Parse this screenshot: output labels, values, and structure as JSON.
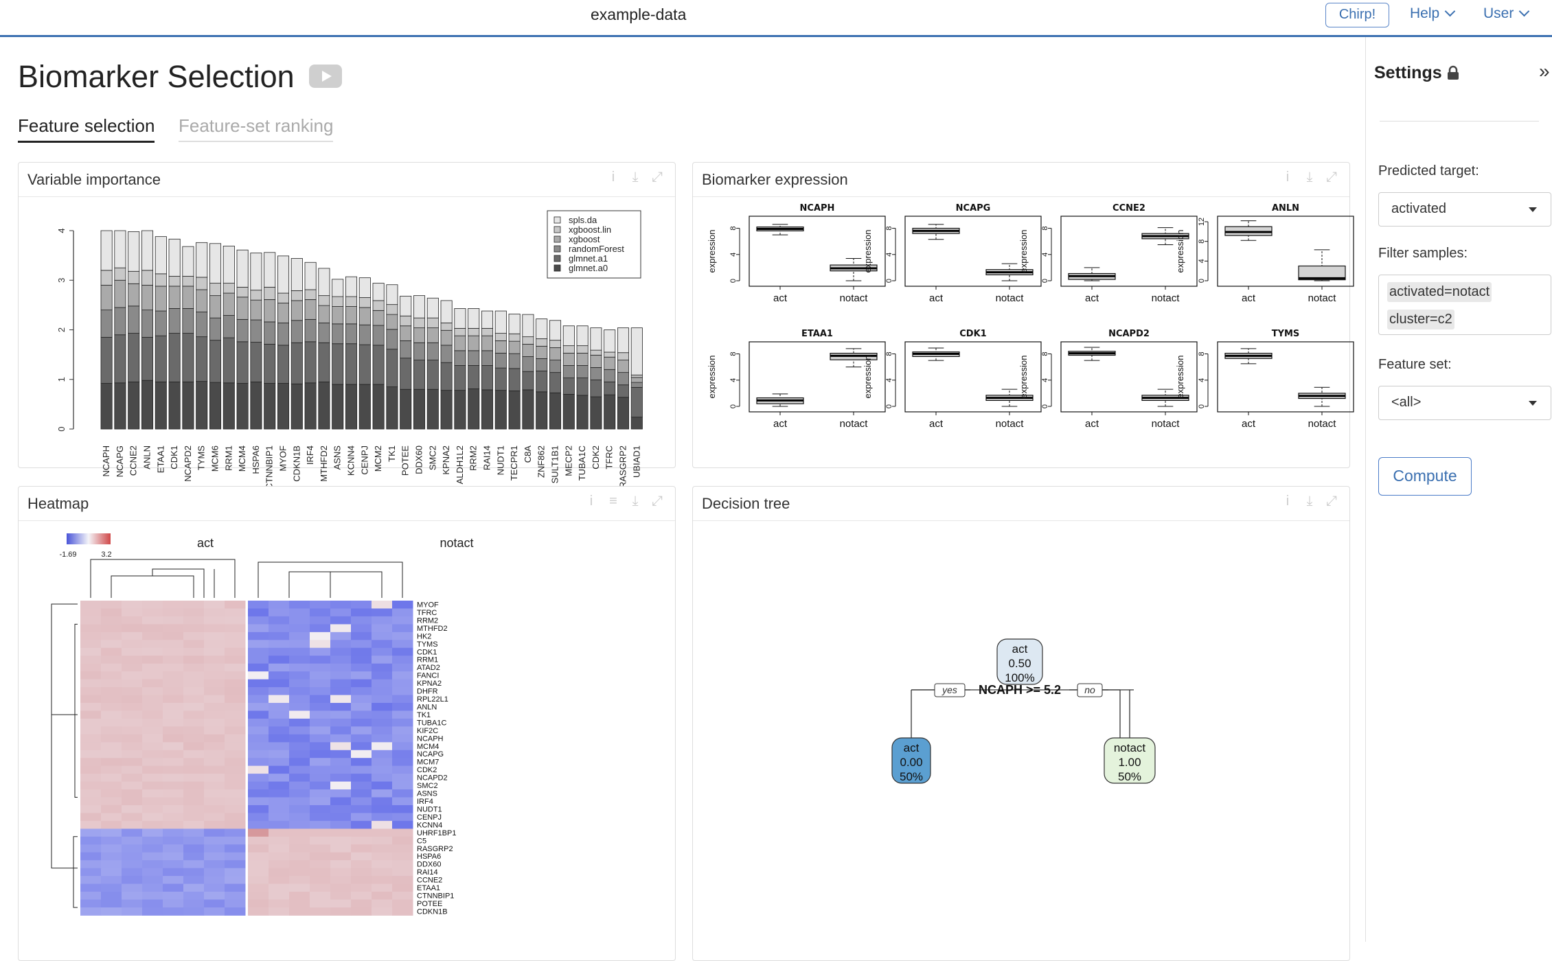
{
  "topbar": {
    "dataset": "example-data",
    "chirp": "Chirp!",
    "help": "Help",
    "user": "User"
  },
  "page": {
    "title": "Biomarker Selection",
    "tabs": [
      "Feature selection",
      "Feature-set ranking"
    ]
  },
  "panels": {
    "varimp": {
      "title": "Variable importance"
    },
    "expr": {
      "title": "Biomarker expression"
    },
    "heatmap": {
      "title": "Heatmap"
    },
    "tree": {
      "title": "Decision tree"
    }
  },
  "sidebar": {
    "title": "Settings",
    "predicted_label": "Predicted target:",
    "predicted_value": "activated",
    "filter_label": "Filter samples:",
    "filters": [
      "activated=notact",
      "cluster=c2"
    ],
    "featureset_label": "Feature set:",
    "featureset_value": "<all>",
    "compute": "Compute"
  },
  "chart_data": [
    {
      "type": "bar",
      "title": "Variable importance",
      "stacked": true,
      "ylim": [
        0,
        4
      ],
      "yticks": [
        0,
        1,
        2,
        3,
        4
      ],
      "categories": [
        "NCAPH",
        "NCAPG",
        "CCNE2",
        "ANLN",
        "ETAA1",
        "CDK1",
        "NCAPD2",
        "TYMS",
        "MCM6",
        "RRM1",
        "MCM4",
        "HSPA6",
        "CTNNBIP1",
        "MYOF",
        "CDKN1B",
        "IRF4",
        "MTHFD2",
        "ASNS",
        "KCNN4",
        "CENPJ",
        "MCM2",
        "TK1",
        "POTEE",
        "DDX60",
        "SMC2",
        "KPNA2",
        "ALDH1L2",
        "RRM2",
        "RAI14",
        "NUDT1",
        "TECPR1",
        "C8A",
        "ZNF862",
        "SULT1B1",
        "MECP2",
        "TUBA1C",
        "CDK2",
        "TFRC",
        "RASGRP2",
        "UBIAD1"
      ],
      "totals": [
        4.0,
        4.0,
        3.98,
        4.0,
        3.88,
        3.83,
        3.68,
        3.76,
        3.74,
        3.69,
        3.61,
        3.55,
        3.56,
        3.49,
        3.44,
        3.36,
        3.24,
        3.02,
        3.07,
        3.05,
        2.94,
        2.91,
        2.68,
        2.69,
        2.64,
        2.59,
        2.43,
        2.43,
        2.38,
        2.38,
        2.32,
        2.31,
        2.22,
        2.19,
        2.08,
        2.08,
        2.04,
        2.0,
        2.04,
        2.04
      ],
      "series": [
        {
          "name": "spls.da",
          "values": [
            0.8,
            0.75,
            0.8,
            0.8,
            0.75,
            0.75,
            0.6,
            0.7,
            0.8,
            0.75,
            0.75,
            0.75,
            0.7,
            0.75,
            0.65,
            0.55,
            0.55,
            0.35,
            0.4,
            0.4,
            0.35,
            0.4,
            0.4,
            0.45,
            0.4,
            0.45,
            0.4,
            0.4,
            0.35,
            0.45,
            0.4,
            0.45,
            0.4,
            0.4,
            0.4,
            0.4,
            0.45,
            0.45,
            0.5,
            0.95
          ]
        },
        {
          "name": "xgboost.lin",
          "values": [
            0.3,
            0.25,
            0.25,
            0.3,
            0.25,
            0.2,
            0.2,
            0.25,
            0.25,
            0.2,
            0.2,
            0.2,
            0.25,
            0.2,
            0.2,
            0.2,
            0.2,
            0.2,
            0.2,
            0.2,
            0.2,
            0.2,
            0.2,
            0.2,
            0.2,
            0.15,
            0.15,
            0.15,
            0.15,
            0.15,
            0.15,
            0.15,
            0.15,
            0.15,
            0.15,
            0.15,
            0.1,
            0.1,
            0.15,
            0.05
          ]
        },
        {
          "name": "xgboost",
          "values": [
            0.5,
            0.55,
            0.45,
            0.5,
            0.5,
            0.45,
            0.45,
            0.45,
            0.45,
            0.45,
            0.45,
            0.4,
            0.45,
            0.4,
            0.4,
            0.4,
            0.35,
            0.35,
            0.35,
            0.35,
            0.3,
            0.3,
            0.3,
            0.3,
            0.3,
            0.3,
            0.3,
            0.3,
            0.3,
            0.25,
            0.25,
            0.25,
            0.25,
            0.25,
            0.25,
            0.25,
            0.25,
            0.25,
            0.25,
            0.1
          ]
        },
        {
          "name": "randomForest",
          "values": [
            0.55,
            0.55,
            0.55,
            0.55,
            0.5,
            0.5,
            0.5,
            0.5,
            0.45,
            0.45,
            0.45,
            0.45,
            0.45,
            0.45,
            0.45,
            0.45,
            0.4,
            0.4,
            0.4,
            0.4,
            0.4,
            0.4,
            0.35,
            0.35,
            0.35,
            0.35,
            0.3,
            0.3,
            0.3,
            0.3,
            0.3,
            0.3,
            0.25,
            0.25,
            0.25,
            0.25,
            0.25,
            0.25,
            0.25,
            0.1
          ]
        },
        {
          "name": "glmnet.a1",
          "values": [
            0.93,
            0.97,
            0.98,
            0.87,
            0.93,
            0.98,
            0.98,
            0.9,
            0.85,
            0.91,
            0.84,
            0.8,
            0.79,
            0.77,
            0.83,
            0.83,
            0.79,
            0.82,
            0.82,
            0.8,
            0.79,
            0.76,
            0.63,
            0.59,
            0.59,
            0.56,
            0.5,
            0.47,
            0.49,
            0.45,
            0.45,
            0.37,
            0.42,
            0.41,
            0.33,
            0.35,
            0.34,
            0.26,
            0.25,
            0.6
          ]
        },
        {
          "name": "glmnet.a0",
          "values": [
            0.92,
            0.93,
            0.95,
            0.98,
            0.95,
            0.95,
            0.95,
            0.96,
            0.94,
            0.93,
            0.92,
            0.95,
            0.92,
            0.92,
            0.91,
            0.93,
            0.95,
            0.9,
            0.9,
            0.9,
            0.9,
            0.85,
            0.8,
            0.8,
            0.8,
            0.78,
            0.78,
            0.81,
            0.79,
            0.78,
            0.77,
            0.79,
            0.75,
            0.73,
            0.7,
            0.68,
            0.65,
            0.69,
            0.64,
            0.24
          ]
        }
      ]
    },
    {
      "type": "box",
      "title": "Biomarker expression",
      "ylabel": "expression",
      "groups": [
        "act",
        "notact"
      ],
      "genes": [
        {
          "name": "NCAPH",
          "ylim": [
            0,
            9
          ],
          "ticks": [
            0,
            4,
            8
          ],
          "act": [
            7,
            7.6,
            7.9,
            8.2,
            8.6
          ],
          "notact": [
            0,
            1.5,
            1.9,
            2.4,
            3.4
          ]
        },
        {
          "name": "NCAPG",
          "ylim": [
            0,
            9
          ],
          "ticks": [
            0,
            4,
            8
          ],
          "act": [
            6.3,
            7.2,
            7.6,
            8,
            8.6
          ],
          "notact": [
            0,
            0.9,
            1.3,
            1.7,
            2.6
          ]
        },
        {
          "name": "CCNE2",
          "ylim": [
            0,
            9
          ],
          "ticks": [
            0,
            4,
            8
          ],
          "act": [
            0,
            0.2,
            0.7,
            1.1,
            2
          ],
          "notact": [
            5.5,
            6.4,
            6.8,
            7.2,
            8.1
          ]
        },
        {
          "name": "ANLN",
          "ylim": [
            0,
            12
          ],
          "ticks": [
            0,
            4,
            8,
            12
          ],
          "act": [
            8.2,
            9.2,
            9.9,
            11,
            12.2
          ],
          "notact": [
            0,
            0.2,
            0.5,
            3,
            6.3
          ]
        },
        {
          "name": "ETAA1",
          "ylim": [
            0,
            9
          ],
          "ticks": [
            0,
            4,
            8
          ],
          "act": [
            0,
            0.4,
            0.9,
            1.3,
            1.9
          ],
          "notact": [
            6,
            7.1,
            7.7,
            8.1,
            8.8
          ]
        },
        {
          "name": "CDK1",
          "ylim": [
            0,
            9
          ],
          "ticks": [
            0,
            4,
            8
          ],
          "act": [
            7,
            7.6,
            8,
            8.3,
            8.9
          ],
          "notact": [
            0,
            0.9,
            1.3,
            1.7,
            2.6
          ]
        },
        {
          "name": "NCAPD2",
          "ylim": [
            0,
            9
          ],
          "ticks": [
            0,
            4,
            8
          ],
          "act": [
            7,
            7.8,
            8.1,
            8.4,
            9
          ],
          "notact": [
            0,
            0.9,
            1.3,
            1.7,
            2.6
          ]
        },
        {
          "name": "TYMS",
          "ylim": [
            0,
            9
          ],
          "ticks": [
            0,
            4,
            8
          ],
          "act": [
            6.5,
            7.3,
            7.7,
            8.1,
            8.8
          ],
          "notact": [
            0,
            1.2,
            1.6,
            2,
            2.9
          ]
        }
      ]
    },
    {
      "type": "heatmap",
      "title": "Heatmap",
      "legend_min": "-1.69",
      "legend_max": "3.2",
      "column_groups": [
        "act",
        "notact"
      ],
      "rows": [
        "MYOF",
        "TFRC",
        "RRM2",
        "MTHFD2",
        "HK2",
        "TYMS",
        "CDK1",
        "RRM1",
        "ATAD2",
        "FANCI",
        "KPNA2",
        "DHFR",
        "RPL22L1",
        "ANLN",
        "TK1",
        "TUBA1C",
        "KIF2C",
        "NCAPH",
        "MCM4",
        "NCAPG",
        "MCM7",
        "CDK2",
        "NCAPD2",
        "SMC2",
        "ASNS",
        "IRF4",
        "NUDT1",
        "CENPJ",
        "KCNN4",
        "UHRF1BP1",
        "C5",
        "RASGRP2",
        "HSPA6",
        "DDX60",
        "RAI14",
        "CCNE2",
        "ETAA1",
        "CTNNBIP1",
        "POTEE",
        "CDKN1B"
      ]
    },
    {
      "type": "tree",
      "title": "Decision tree",
      "split": "NCAPH >= 5.2",
      "yes": "yes",
      "no": "no",
      "root": [
        "act",
        "0.50",
        "100%"
      ],
      "left": [
        "act",
        "0.00",
        "50%"
      ],
      "right": [
        "notact",
        "1.00",
        "50%"
      ]
    }
  ]
}
